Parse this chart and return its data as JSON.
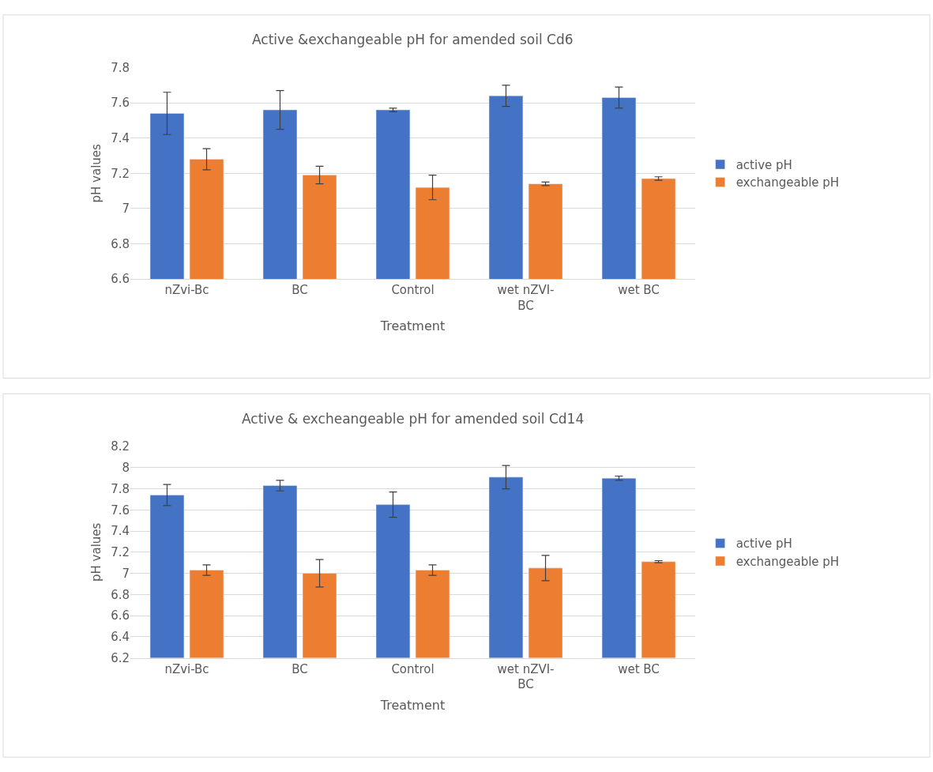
{
  "chart_data": [
    {
      "type": "bar",
      "title": "Active &exchangeable pH for amended soil Cd6",
      "xlabel": "Treatment",
      "ylabel": "pH values",
      "categories": [
        "nZvi-Bc",
        "BC",
        "Control",
        "wet nZVI-BC",
        "wet BC"
      ],
      "series": [
        {
          "name": "active pH",
          "color": "#4472c4",
          "values": [
            7.54,
            7.56,
            7.56,
            7.64,
            7.63
          ],
          "errors": [
            0.12,
            0.11,
            0.01,
            0.06,
            0.06
          ]
        },
        {
          "name": "exchangeable pH",
          "color": "#ed7d31",
          "values": [
            7.28,
            7.19,
            7.12,
            7.14,
            7.17
          ],
          "errors": [
            0.06,
            0.05,
            0.07,
            0.01,
            0.01
          ]
        }
      ],
      "ylim": [
        6.6,
        7.8
      ],
      "yticks": [
        6.6,
        6.8,
        7,
        7.2,
        7.4,
        7.6,
        7.8
      ],
      "grid": "y",
      "legend": "right"
    },
    {
      "type": "bar",
      "title": "Active & excheangeable pH for amended soil Cd14",
      "xlabel": "Treatment",
      "ylabel": "pH values",
      "categories": [
        "nZvi-Bc",
        "BC",
        "Control",
        "wet nZVI-BC",
        "wet BC"
      ],
      "series": [
        {
          "name": "active pH",
          "color": "#4472c4",
          "values": [
            7.74,
            7.83,
            7.65,
            7.91,
            7.9
          ],
          "errors": [
            0.1,
            0.05,
            0.12,
            0.11,
            0.02
          ]
        },
        {
          "name": "exchangeable pH",
          "color": "#ed7d31",
          "values": [
            7.03,
            7.0,
            7.03,
            7.05,
            7.11
          ],
          "errors": [
            0.05,
            0.13,
            0.05,
            0.12,
            0.01
          ]
        }
      ],
      "ylim": [
        6.2,
        8.2
      ],
      "yticks": [
        6.2,
        6.4,
        6.6,
        6.8,
        7,
        7.2,
        7.4,
        7.6,
        7.8,
        8,
        8.2
      ],
      "grid": "y",
      "legend": "right"
    }
  ]
}
